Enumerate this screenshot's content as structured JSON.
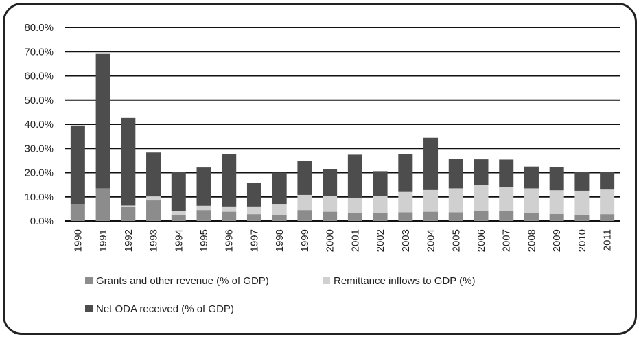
{
  "chart_data": {
    "type": "bar",
    "stacked": true,
    "title": "",
    "xlabel": "",
    "ylabel": "",
    "ylim": [
      0,
      80
    ],
    "y_ticks": [
      "0.0%",
      "10.0%",
      "20.0%",
      "30.0%",
      "40.0%",
      "50.0%",
      "60.0%",
      "70.0%",
      "80.0%"
    ],
    "y_tick_values": [
      0,
      10,
      20,
      30,
      40,
      50,
      60,
      70,
      80
    ],
    "grid": true,
    "legend_position": "bottom",
    "categories": [
      "1990",
      "1991",
      "1992",
      "1993",
      "1994",
      "1995",
      "1996",
      "1997",
      "1998",
      "1999",
      "2000",
      "2001",
      "2002",
      "2003",
      "2004",
      "2005",
      "2006",
      "2007",
      "2008",
      "2009",
      "2010",
      "2011"
    ],
    "series": [
      {
        "name": "Grants and other revenue (% of GDP)",
        "color": "#8c8c8c",
        "values": [
          6.8,
          13.5,
          6.0,
          8.5,
          2.5,
          4.5,
          3.8,
          2.8,
          2.5,
          4.5,
          3.8,
          3.4,
          3.2,
          3.6,
          3.8,
          3.6,
          4.2,
          4.0,
          3.2,
          2.9,
          2.5,
          2.8
        ]
      },
      {
        "name": "Remittance inflows to GDP (%)",
        "color": "#d0d0d0",
        "values": [
          0.0,
          0.0,
          0.4,
          1.7,
          1.5,
          1.8,
          2.2,
          3.2,
          4.3,
          6.3,
          6.5,
          6.1,
          7.3,
          8.4,
          9.0,
          9.9,
          10.8,
          10.0,
          10.3,
          9.8,
          10.0,
          10.2
        ]
      },
      {
        "name": "Net ODA received (% of GDP)",
        "color": "#4d4d4d",
        "values": [
          32.7,
          55.8,
          36.2,
          18.1,
          16.2,
          15.8,
          21.7,
          9.8,
          13.2,
          14.0,
          11.2,
          17.9,
          10.1,
          15.8,
          21.6,
          12.3,
          10.5,
          11.4,
          9.0,
          9.5,
          7.7,
          7.3
        ]
      }
    ]
  },
  "colors": {
    "frame": "#222222",
    "grid": "#111111",
    "text": "#222222"
  }
}
